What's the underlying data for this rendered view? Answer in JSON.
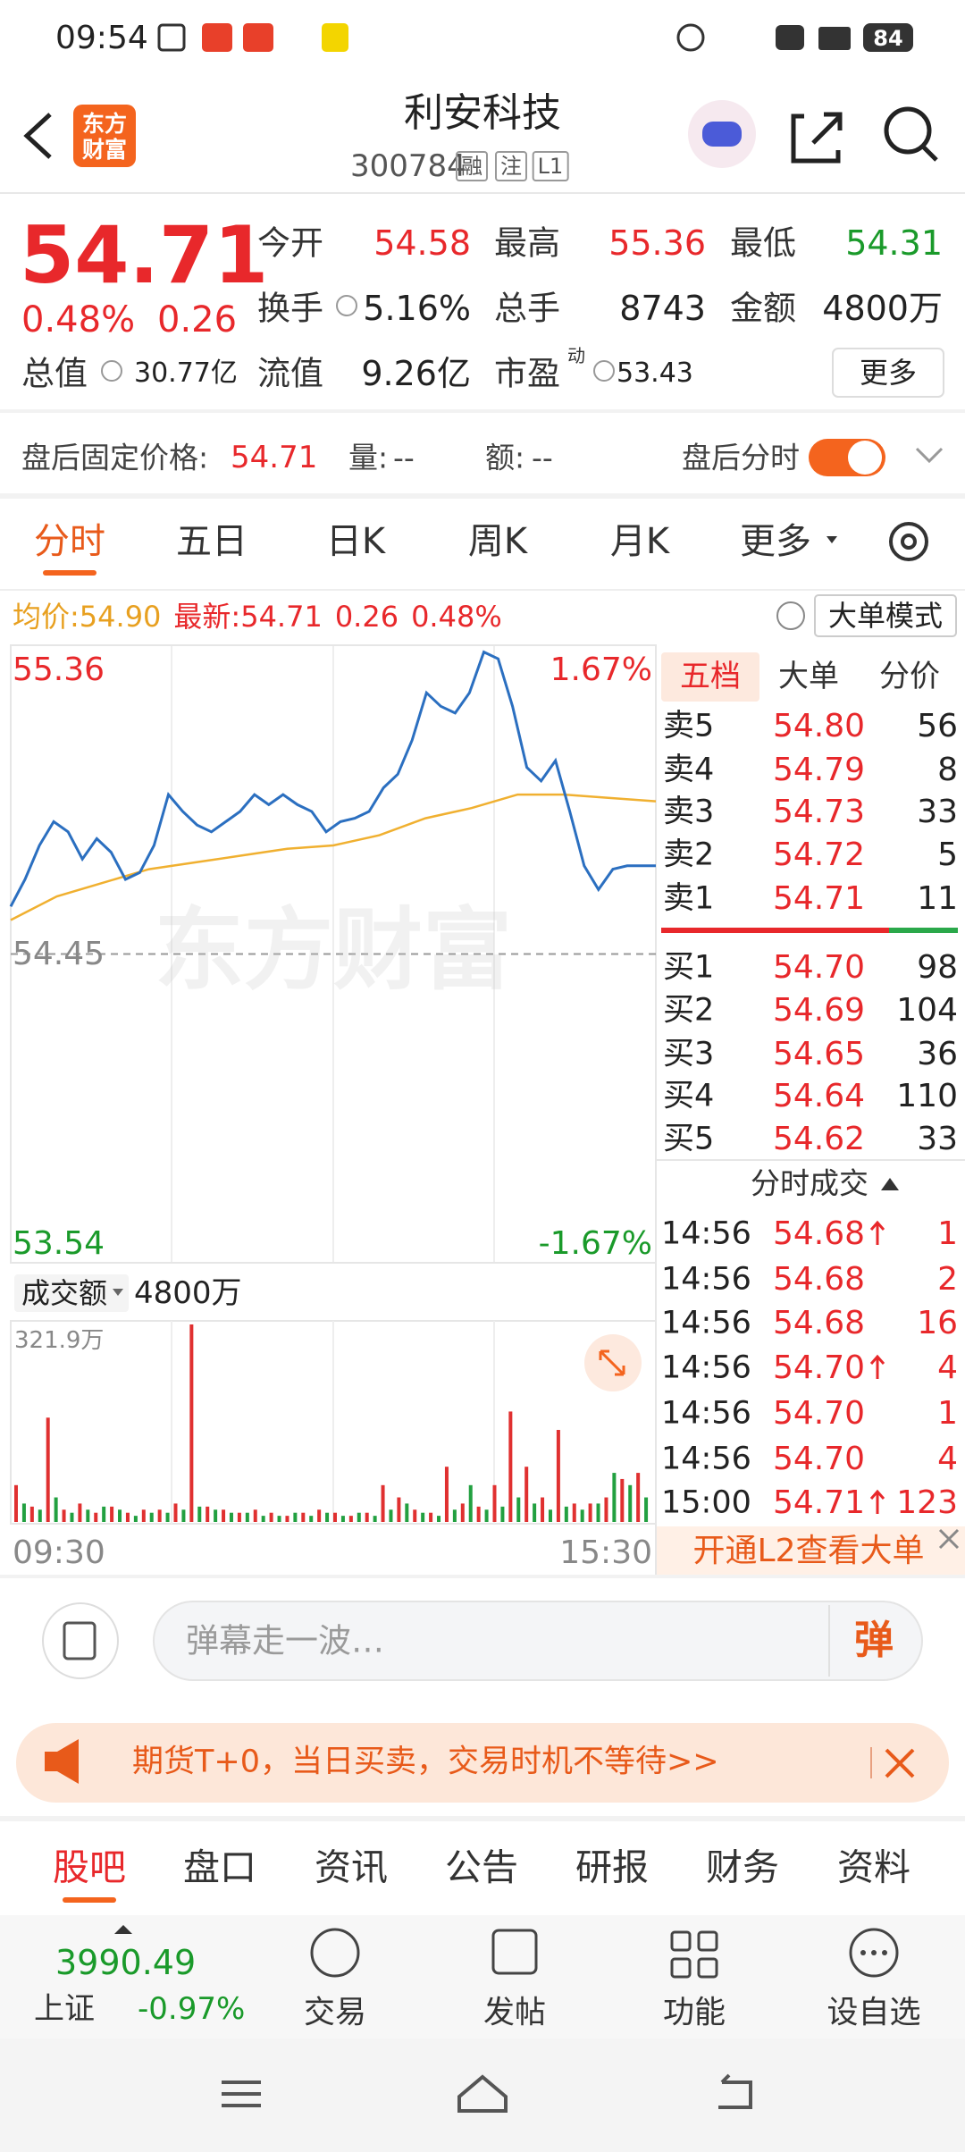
{
  "status_bar": {
    "time": "09:54",
    "battery": "84"
  },
  "header": {
    "logo": "东方财富",
    "title": "利安科技",
    "code": "300784",
    "badges": [
      "融",
      "注",
      "L1"
    ]
  },
  "quote": {
    "price": "54.71",
    "change_pct": "0.48%",
    "change": "0.26",
    "fields": [
      {
        "label": "今开",
        "value": "54.58",
        "color": "#e8282b"
      },
      {
        "label": "最高",
        "value": "55.36",
        "color": "#e8282b"
      },
      {
        "label": "最低",
        "value": "54.31",
        "color": "#1a9a2a"
      },
      {
        "label": "换手",
        "value": "5.16%",
        "color": "#222222"
      },
      {
        "label": "总手",
        "value": "8743",
        "color": "#222222"
      },
      {
        "label": "金额",
        "value": "4800万",
        "color": "#222222"
      },
      {
        "label": "总值",
        "value": "30.77亿",
        "color": "#222222"
      },
      {
        "label": "流值",
        "value": "9.26亿",
        "color": "#222222"
      },
      {
        "label": "市盈",
        "sup": "动",
        "value": "53.43",
        "color": "#222222"
      }
    ],
    "more": "更多"
  },
  "after_hours": {
    "label": "盘后固定价格:",
    "price": "54.71",
    "volume_label": "量:",
    "volume": "--",
    "amount_label": "额:",
    "amount": "--",
    "toggle_label": "盘后分时"
  },
  "tabs": [
    "分时",
    "五日",
    "日K",
    "周K",
    "月K",
    "更多"
  ],
  "summary": {
    "avg_label": "均价:",
    "avg": "54.90",
    "latest_label": "最新:",
    "latest": "54.71",
    "change": "0.26",
    "change_pct": "0.48%",
    "mode_button": "大单模式"
  },
  "intraday": {
    "ylim": [
      53.54,
      55.36
    ],
    "mid": 54.45,
    "top_pct": "1.67%",
    "bottom_pct": "-1.67%",
    "watermark": "东方财富",
    "price": [
      54.59,
      54.67,
      54.77,
      54.84,
      54.81,
      54.73,
      54.79,
      54.75,
      54.67,
      54.69,
      54.77,
      54.92,
      54.87,
      54.83,
      54.81,
      54.84,
      54.87,
      54.92,
      54.89,
      54.92,
      54.89,
      54.87,
      54.81,
      54.84,
      54.85,
      54.87,
      54.94,
      54.98,
      55.08,
      55.22,
      55.18,
      55.16,
      55.22,
      55.34,
      55.32,
      55.18,
      55.0,
      54.96,
      55.02,
      54.87,
      54.71,
      54.64,
      54.7,
      54.71,
      54.71,
      54.71
    ],
    "average": [
      54.55,
      54.62,
      54.66,
      54.7,
      54.72,
      54.74,
      54.76,
      54.77,
      54.8,
      54.85,
      54.88,
      54.92,
      54.92,
      54.91,
      54.9
    ],
    "volume_label": "成交额",
    "volume_total": "4800万",
    "volume_max": {
      "value": 321.9,
      "label": "321.9万"
    },
    "volume_up": [
      60,
      25,
      170,
      20,
      30,
      15,
      25,
      15,
      20,
      20,
      30,
      321.9,
      25,
      20,
      15,
      20,
      15,
      10,
      15,
      20,
      15,
      10,
      15,
      60,
      40,
      20,
      15,
      90,
      30,
      25,
      60,
      180,
      90,
      40,
      150,
      30,
      30,
      40,
      70,
      80
    ],
    "volume_down": [
      30,
      20,
      40,
      15,
      20,
      25,
      20,
      10,
      15,
      15,
      20,
      25,
      20,
      15,
      15,
      10,
      10,
      15,
      10,
      15,
      10,
      15,
      10,
      20,
      30,
      15,
      10,
      20,
      60,
      20,
      25,
      40,
      30,
      20,
      25,
      20,
      30,
      80,
      60,
      40
    ],
    "start_time": "09:30",
    "end_time": "15:30"
  },
  "order_book": {
    "tabs": [
      "五档",
      "大单",
      "分价"
    ],
    "asks": [
      {
        "label": "卖5",
        "price": "54.80",
        "volume": "56"
      },
      {
        "label": "卖4",
        "price": "54.79",
        "volume": "8"
      },
      {
        "label": "卖3",
        "price": "54.73",
        "volume": "33"
      },
      {
        "label": "卖2",
        "price": "54.72",
        "volume": "5"
      },
      {
        "label": "卖1",
        "price": "54.71",
        "volume": "11"
      }
    ],
    "bids": [
      {
        "label": "买1",
        "price": "54.70",
        "volume": "98"
      },
      {
        "label": "买2",
        "price": "54.69",
        "volume": "104"
      },
      {
        "label": "买3",
        "price": "54.65",
        "volume": "36"
      },
      {
        "label": "买4",
        "price": "54.64",
        "volume": "110"
      },
      {
        "label": "买5",
        "price": "54.62",
        "volume": "33"
      }
    ],
    "trades_title": "分时成交",
    "trades": [
      {
        "time": "14:56",
        "price": "54.68",
        "volume": "1",
        "up": true
      },
      {
        "time": "14:56",
        "price": "54.68",
        "volume": "2",
        "up": false
      },
      {
        "time": "14:56",
        "price": "54.68",
        "volume": "16",
        "up": false
      },
      {
        "time": "14:56",
        "price": "54.70",
        "volume": "4",
        "up": true
      },
      {
        "time": "14:56",
        "price": "54.70",
        "volume": "1",
        "up": false
      },
      {
        "time": "14:56",
        "price": "54.70",
        "volume": "4",
        "up": false
      },
      {
        "time": "15:00",
        "price": "54.71",
        "volume": "123",
        "up": true
      }
    ],
    "l2_banner": "开通L2查看大单"
  },
  "comment": {
    "placeholder": "弹幕走一波…",
    "button": "弹"
  },
  "ad": {
    "text": "期货T+0，当日买卖，交易时机不等待>>"
  },
  "bottom_tabs": [
    "股吧",
    "盘口",
    "资讯",
    "公告",
    "研报",
    "财务",
    "资料"
  ],
  "bottom_nav": {
    "index_value": "3990.49",
    "index_name": "上证",
    "index_change": "-0.97%",
    "items": [
      "交易",
      "发帖",
      "功能",
      "设自选"
    ]
  }
}
